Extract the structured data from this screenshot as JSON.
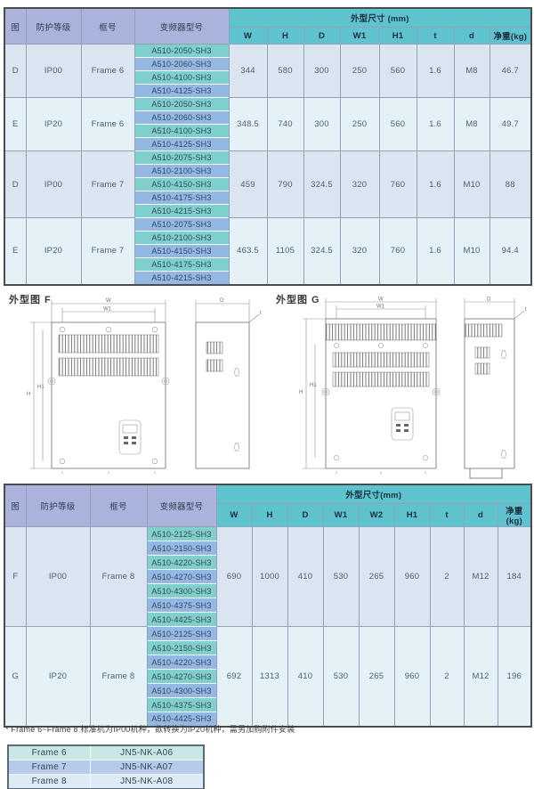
{
  "colors": {
    "header_purple": "#a9b3dc",
    "teal_header": "#5ec3cf",
    "model_teal": "#7fd0cc",
    "model_blue": "#93b8e3",
    "band_a": "#dbe5f2",
    "band_b": "#e4f1f7",
    "grid": "#93a2b4",
    "border_dark": "#4c4c4c",
    "text_dark": "#2e3d4f",
    "text_body": "#4d6172",
    "acc_row1": "#c8e7e5",
    "acc_row2": "#b5cbe9",
    "acc_row3": "#dcebf5",
    "drawing_line": "#8a8a8a"
  },
  "table1": {
    "headers": {
      "fig": "图",
      "protection": "防护等级",
      "frame": "框号",
      "model": "变频器型号",
      "dims_title": "外型尺寸 (mm)"
    },
    "dim_cols": [
      "W",
      "H",
      "D",
      "W1",
      "H1",
      "t",
      "d",
      "净重(kg)"
    ],
    "groups": [
      {
        "fig": "D",
        "protection": "IP00",
        "frame": "Frame 6",
        "models": [
          "A510-2050-SH3",
          "A510-2060-SH3",
          "A510-4100-SH3",
          "A510-4125-SH3"
        ],
        "dims": [
          "344",
          "580",
          "300",
          "250",
          "560",
          "1.6",
          "M8",
          "46.7"
        ]
      },
      {
        "fig": "E",
        "protection": "IP20",
        "frame": "Frame 6",
        "models": [
          "A510-2050-SH3",
          "A510-2060-SH3",
          "A510-4100-SH3",
          "A510-4125-SH3"
        ],
        "dims": [
          "348.5",
          "740",
          "300",
          "250",
          "560",
          "1.6",
          "M8",
          "49.7"
        ]
      },
      {
        "fig": "D",
        "protection": "IP00",
        "frame": "Frame 7",
        "models": [
          "A510-2075-SH3",
          "A510-2100-SH3",
          "A510-4150-SH3",
          "A510-4175-SH3",
          "A510-4215-SH3"
        ],
        "dims": [
          "459",
          "790",
          "324.5",
          "320",
          "760",
          "1.6",
          "M10",
          "88"
        ]
      },
      {
        "fig": "E",
        "protection": "IP20",
        "frame": "Frame 7",
        "models": [
          "A510-2075-SH3",
          "A510-2100-SH3",
          "A510-4150-SH3",
          "A510-4175-SH3",
          "A510-4215-SH3"
        ],
        "dims": [
          "463.5",
          "1105",
          "324.5",
          "320",
          "760",
          "1.6",
          "M10",
          "94.4"
        ]
      }
    ]
  },
  "drawings": {
    "f": {
      "label": "外型图 F"
    },
    "g": {
      "label": "外型图 G"
    },
    "dim_labels": {
      "w": "W",
      "w1": "W1",
      "h": "H",
      "h1": "H1",
      "d": "D",
      "t": "t"
    }
  },
  "table2": {
    "headers": {
      "fig": "图",
      "protection": "防护等级",
      "frame": "框号",
      "model": "变频器型号",
      "dims_title": "外型尺寸(mm)"
    },
    "dim_cols": [
      "W",
      "H",
      "D",
      "W1",
      "W2",
      "H1",
      "t",
      "d",
      "净重(kg)"
    ],
    "groups": [
      {
        "fig": "F",
        "protection": "IP00",
        "frame": "Frame 8",
        "models": [
          "A510-2125-SH3",
          "A510-2150-SH3",
          "A510-4220-SH3",
          "A510-4270-SH3",
          "A510-4300-SH3",
          "A510-4375-SH3",
          "A510-4425-SH3"
        ],
        "dims": [
          "690",
          "1000",
          "410",
          "530",
          "265",
          "960",
          "2",
          "M12",
          "184"
        ]
      },
      {
        "fig": "G",
        "protection": "IP20",
        "frame": "Frame 8",
        "models": [
          "A510-2125-SH3",
          "A510-2150-SH3",
          "A510-4220-SH3",
          "A510-4270-SH3",
          "A510-4300-SH3",
          "A510-4375-SH3",
          "A510-4425-SH3"
        ],
        "dims": [
          "692",
          "1313",
          "410",
          "530",
          "265",
          "960",
          "2",
          "M12",
          "196"
        ]
      }
    ]
  },
  "footnote": "* Frame 6~Frame 8 标准机为IP00机种，欲转换为IP20机种，需另加购附件安装",
  "accessory_table": {
    "rows": [
      {
        "frame": "Frame 6",
        "part": "JN5-NK-A06"
      },
      {
        "frame": "Frame 7",
        "part": "JN5-NK-A07"
      },
      {
        "frame": "Frame 8",
        "part": "JN5-NK-A08"
      }
    ]
  }
}
